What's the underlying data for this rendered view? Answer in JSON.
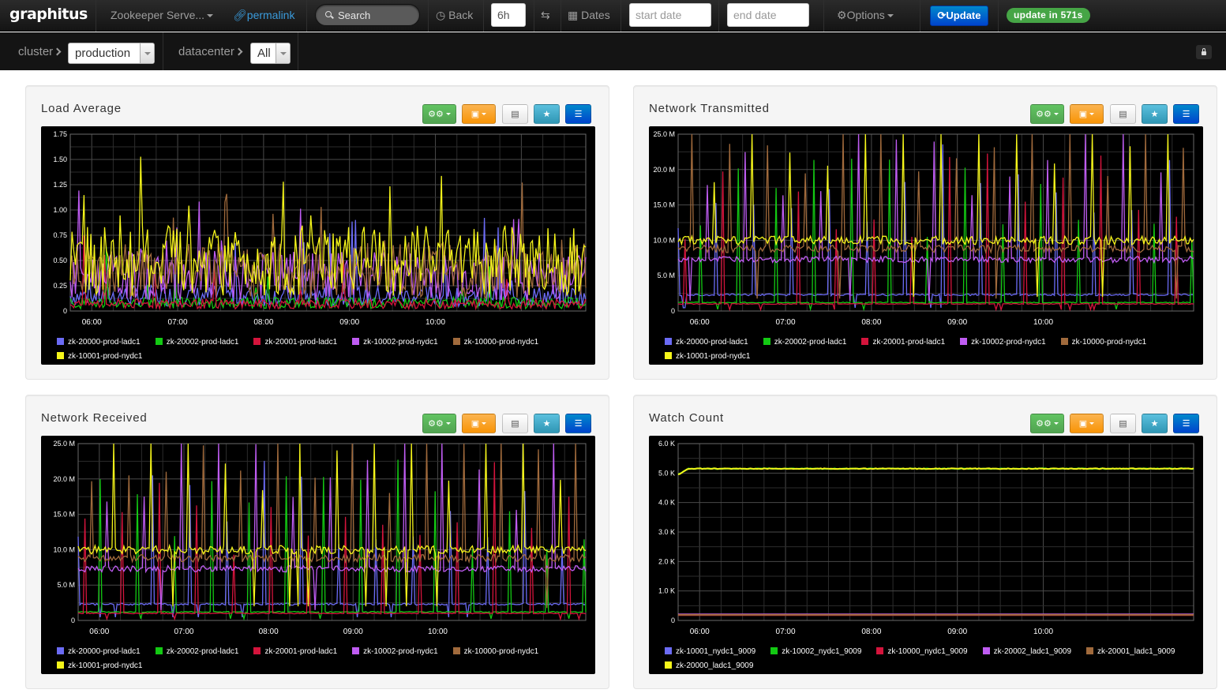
{
  "navbar": {
    "brand": "graphitus",
    "dashboard_title": "Zookeeper Serve...",
    "permalink": "permalink",
    "search_placeholder": "Search",
    "back": "Back",
    "timeframe": "6h",
    "dates": "Dates",
    "start_date_placeholder": "start date",
    "end_date_placeholder": "end date",
    "options": "Options",
    "update": "Update",
    "update_badge": "update in 571s"
  },
  "filters": {
    "cluster_label": "cluster",
    "cluster_value": "production",
    "datacenter_label": "datacenter",
    "datacenter_value": "All"
  },
  "colors": {
    "series": [
      "#6b6bf5",
      "#13c913",
      "#d4143c",
      "#bf5cf2",
      "#a06a3c",
      "#f5f51a"
    ]
  },
  "x_ticks": [
    "06:00",
    "07:00",
    "08:00",
    "09:00",
    "10:00"
  ],
  "panels": [
    {
      "title": "Load Average",
      "y_ticks": [
        "1.75",
        "1.50",
        "1.25",
        "1.00",
        "0.75",
        "0.50",
        "0.25",
        "0"
      ],
      "legend": [
        "zk-20000-prod-ladc1",
        "zk-20002-prod-ladc1",
        "zk-20001-prod-ladc1",
        "zk-10002-prod-nydc1",
        "zk-10000-prod-nydc1",
        "zk-10001-prod-nydc1"
      ],
      "chart_data": {
        "type": "line",
        "ylim": [
          0,
          1.75
        ],
        "series": [
          {
            "name": "zk-20000-prod-ladc1",
            "level": 0.15
          },
          {
            "name": "zk-20002-prod-ladc1",
            "level": 0.08
          },
          {
            "name": "zk-20001-prod-ladc1",
            "level": 0.07
          },
          {
            "name": "zk-10002-prod-nydc1",
            "level": 0.35
          },
          {
            "name": "zk-10000-prod-nydc1",
            "level": 0.4
          },
          {
            "name": "zk-10001-prod-nydc1",
            "level": 0.5
          }
        ]
      }
    },
    {
      "title": "Network Transmitted",
      "y_ticks": [
        "25.0 M",
        "20.0 M",
        "15.0 M",
        "10.0 M",
        "5.0 M",
        "0"
      ],
      "legend": [
        "zk-20000-prod-ladc1",
        "zk-20002-prod-ladc1",
        "zk-20001-prod-ladc1",
        "zk-10002-prod-nydc1",
        "zk-10000-prod-nydc1",
        "zk-10001-prod-nydc1"
      ],
      "chart_data": {
        "type": "line",
        "ylim": [
          0,
          25
        ],
        "series": [
          {
            "name": "zk-20000-prod-ladc1",
            "level": 2.3
          },
          {
            "name": "zk-20002-prod-ladc1",
            "level": 1.2
          },
          {
            "name": "zk-20001-prod-ladc1",
            "level": 1.0
          },
          {
            "name": "zk-10002-prod-nydc1",
            "level": 7.3
          },
          {
            "name": "zk-10000-prod-nydc1",
            "level": 8.8
          },
          {
            "name": "zk-10001-prod-nydc1",
            "level": 10.0
          }
        ]
      }
    },
    {
      "title": "Network Received",
      "y_ticks": [
        "25.0 M",
        "20.0 M",
        "15.0 M",
        "10.0 M",
        "5.0 M",
        "0"
      ],
      "legend": [
        "zk-20000-prod-ladc1",
        "zk-20002-prod-ladc1",
        "zk-20001-prod-ladc1",
        "zk-10002-prod-nydc1",
        "zk-10000-prod-nydc1",
        "zk-10001-prod-nydc1"
      ],
      "chart_data": {
        "type": "line",
        "ylim": [
          0,
          25
        ],
        "series": [
          {
            "name": "zk-20000-prod-ladc1",
            "level": 2.3
          },
          {
            "name": "zk-20002-prod-ladc1",
            "level": 1.2
          },
          {
            "name": "zk-20001-prod-ladc1",
            "level": 1.0
          },
          {
            "name": "zk-10002-prod-nydc1",
            "level": 7.3
          },
          {
            "name": "zk-10000-prod-nydc1",
            "level": 8.8
          },
          {
            "name": "zk-10001-prod-nydc1",
            "level": 10.0
          }
        ]
      }
    },
    {
      "title": "Watch Count",
      "y_ticks": [
        "6.0 K",
        "5.0 K",
        "4.0 K",
        "3.0 K",
        "2.0 K",
        "1.0 K",
        "0"
      ],
      "legend": [
        "zk-10001_nydc1_9009",
        "zk-10002_nydc1_9009",
        "zk-10000_nydc1_9009",
        "zk-20002_ladc1_9009",
        "zk-20001_ladc1_9009",
        "zk-20000_ladc1_9009"
      ],
      "chart_data": {
        "type": "line",
        "ylim": [
          0,
          6000
        ],
        "series": [
          {
            "name": "zk-10001_nydc1_9009",
            "level": 200
          },
          {
            "name": "zk-10002_nydc1_9009",
            "level": 5150
          },
          {
            "name": "zk-10000_nydc1_9009",
            "level": 180
          },
          {
            "name": "zk-20002_ladc1_9009",
            "level": 210
          },
          {
            "name": "zk-20001_ladc1_9009",
            "level": 190
          },
          {
            "name": "zk-20000_ladc1_9009",
            "level": 5150
          }
        ]
      }
    }
  ]
}
